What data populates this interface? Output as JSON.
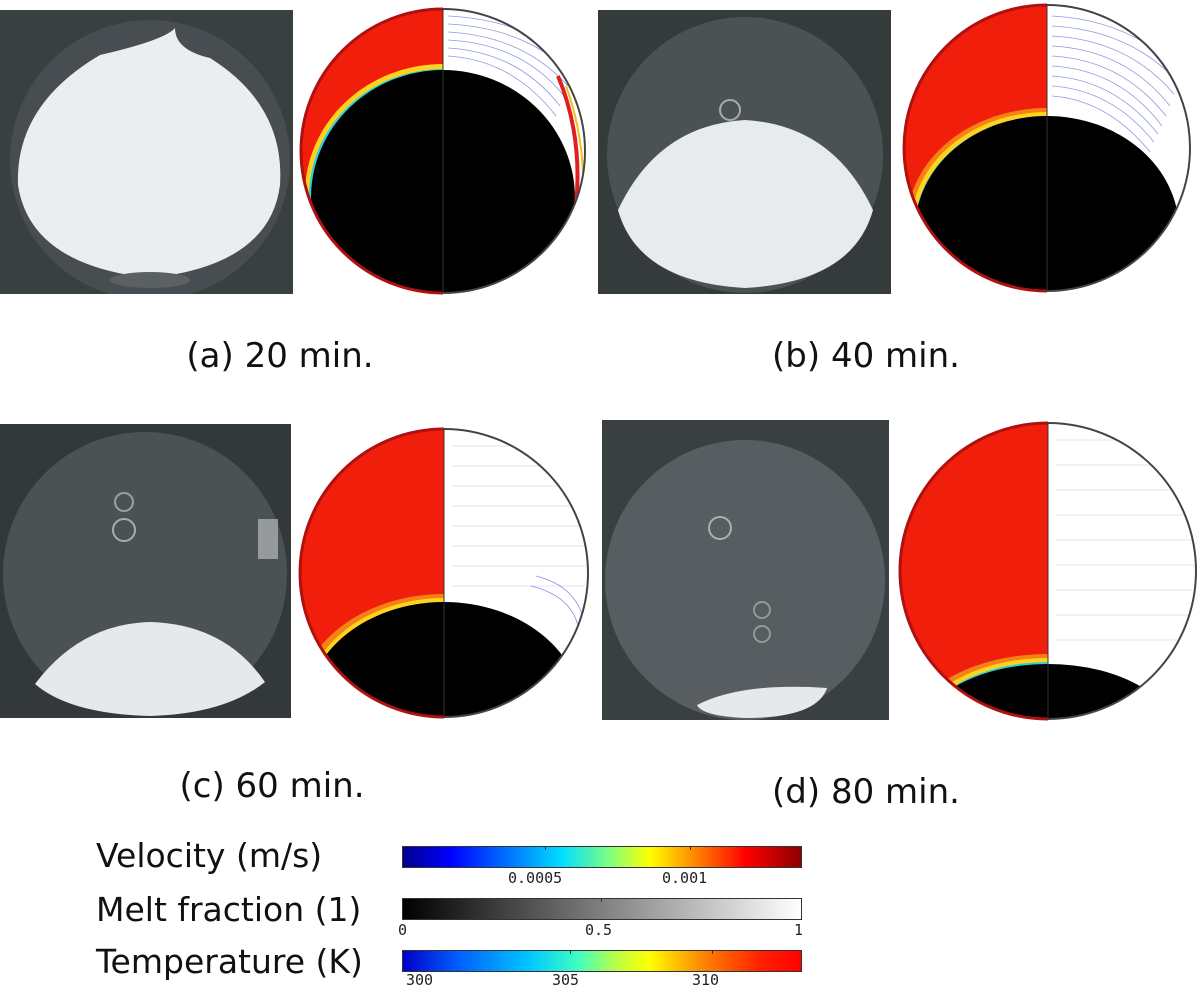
{
  "panels": [
    {
      "caption": "(a) 20 min.",
      "melt_fraction_level": 0.22
    },
    {
      "caption": "(b) 40 min.",
      "melt_fraction_level": 0.48
    },
    {
      "caption": "(c) 60 min.",
      "melt_fraction_level": 0.72
    },
    {
      "caption": "(d) 80 min.",
      "melt_fraction_level": 0.92
    }
  ],
  "legend": {
    "velocity": {
      "label": "Velocity (m/s)",
      "ticks": [
        "0.0005",
        "0.001"
      ]
    },
    "melt": {
      "label": "Melt fraction (1)",
      "ticks": [
        "0",
        "0.5",
        "1"
      ]
    },
    "temperature": {
      "label": "Temperature (K)",
      "ticks": [
        "300",
        "305",
        "310"
      ]
    }
  },
  "colors": {
    "hot": "#f01e0a",
    "solid": "#0f55f0",
    "solid_dark": "#000000",
    "photo_bg": "#33393a",
    "pcm": "#e8ebec"
  }
}
